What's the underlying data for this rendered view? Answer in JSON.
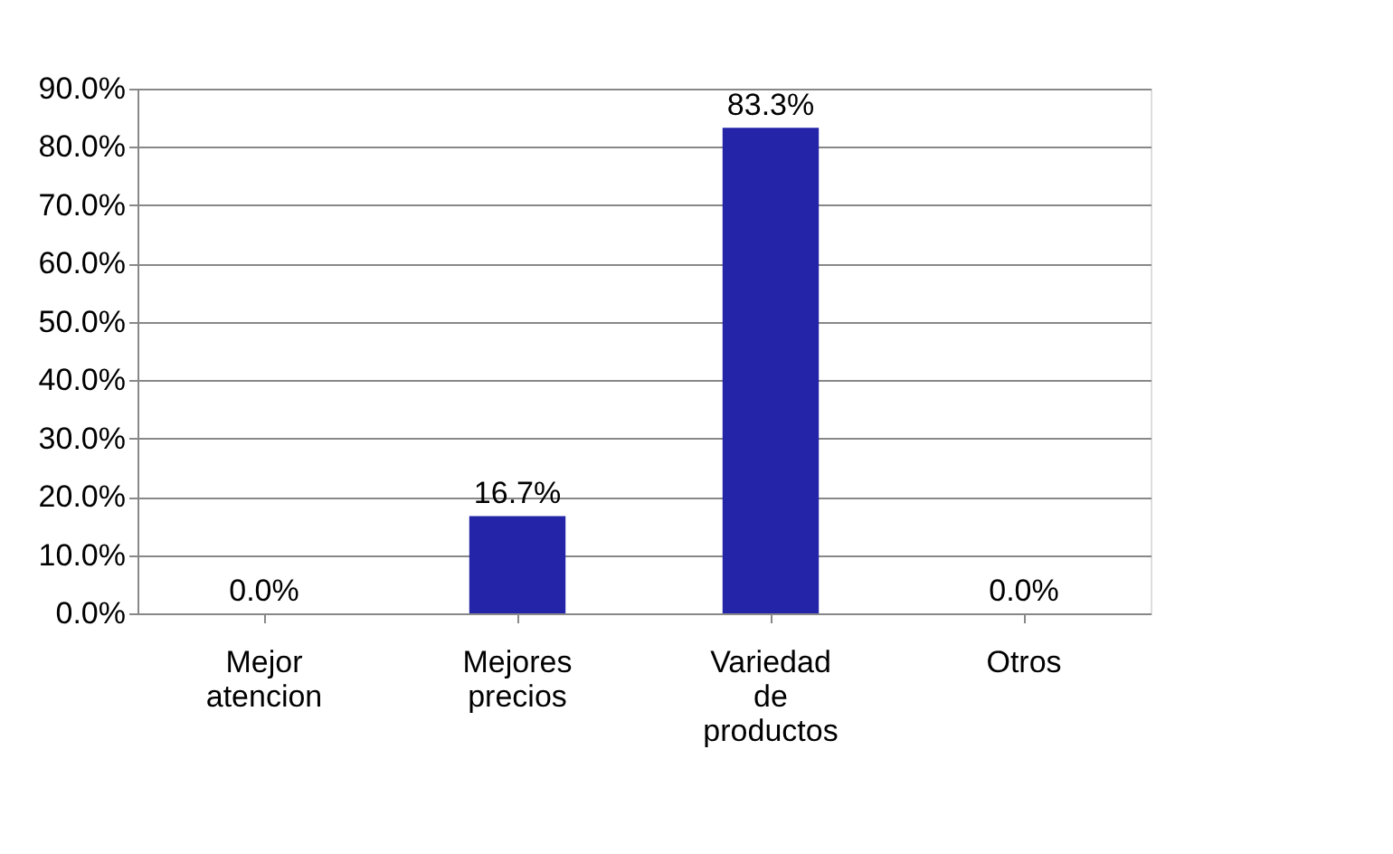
{
  "chart_data": {
    "type": "bar",
    "categories": [
      "Mejor atencion",
      "Mejores precios",
      "Variedad de productos",
      "Otros"
    ],
    "values": [
      0,
      16.7,
      83.3,
      0
    ],
    "value_labels": [
      "0.0%",
      "16.7%",
      "83.3%",
      "0.0%"
    ],
    "color": "#2424a8",
    "ylim": [
      0,
      90
    ],
    "yticks": [
      {
        "value": 0,
        "label": "0.0%"
      },
      {
        "value": 10,
        "label": "10.0%"
      },
      {
        "value": 20,
        "label": "20.0%"
      },
      {
        "value": 30,
        "label": "30.0%"
      },
      {
        "value": 40,
        "label": "40.0%"
      },
      {
        "value": 50,
        "label": "50.0%"
      },
      {
        "value": 60,
        "label": "60.0%"
      },
      {
        "value": 70,
        "label": "70.0%"
      },
      {
        "value": 80,
        "label": "80.0%"
      },
      {
        "value": 90,
        "label": "90.0%"
      }
    ],
    "grid": "y"
  }
}
